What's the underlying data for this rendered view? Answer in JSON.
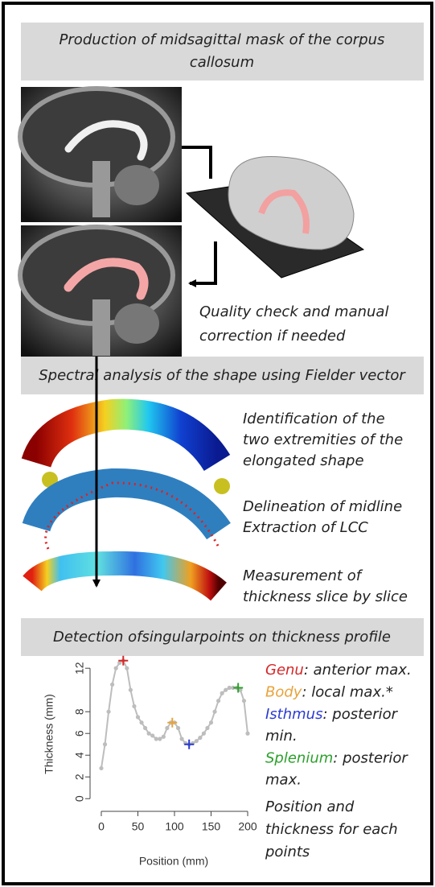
{
  "header1": {
    "lines": [
      "Production of midsagittal mask of the corpus",
      "callosum"
    ]
  },
  "quality_note": {
    "lines": [
      "Quality check and manual",
      "correction if needed"
    ]
  },
  "header2": {
    "lines": [
      "Spectral analysis of the shape using Fielder vector"
    ]
  },
  "steps": [
    {
      "lines": [
        "Identification of the",
        "two extremities of the",
        "elongated shape"
      ]
    },
    {
      "lines": [
        "Delineation of midline",
        "Extraction of LCC"
      ]
    },
    {
      "lines": [
        "Measurement of",
        "thickness slice by slice"
      ]
    }
  ],
  "header3": {
    "lines": [
      "Detection ofsingularpoints on thickness profile"
    ]
  },
  "profile": {
    "type": "line",
    "x_label": "Position (mm)",
    "y_label": "Thickness (mm)",
    "xlim": [
      -8,
      208
    ],
    "ylim": [
      -0.5,
      13.2
    ],
    "xticks": [
      0,
      50,
      100,
      150,
      200
    ],
    "yticks": [
      0,
      2,
      4,
      6,
      8,
      12
    ],
    "color": "#bdbdbd",
    "x": [
      0,
      5,
      10,
      15,
      20,
      25,
      30,
      35,
      40,
      45,
      50,
      55,
      60,
      65,
      70,
      75,
      80,
      85,
      90,
      95,
      100,
      105,
      110,
      115,
      120,
      125,
      130,
      135,
      140,
      145,
      150,
      155,
      160,
      165,
      170,
      175,
      180,
      185,
      190,
      195,
      200
    ],
    "values": [
      2.8,
      5,
      8,
      10.5,
      12,
      12.5,
      12.7,
      12,
      10,
      8.5,
      7.5,
      7,
      6.5,
      6,
      5.8,
      5.5,
      5.5,
      5.7,
      6.5,
      7,
      7,
      6.5,
      5.5,
      5.1,
      5,
      5.1,
      5.3,
      5.6,
      6,
      6.5,
      7,
      8,
      9,
      9.7,
      10,
      10.2,
      10.2,
      10.2,
      10,
      9,
      6
    ],
    "singular_points": [
      {
        "name": "Genu",
        "color": "#d62728",
        "x": 30,
        "y": 12.7,
        "desc_lines": [
          ": anterior max."
        ]
      },
      {
        "name": "Body",
        "color": "#e8a33c",
        "x": 97,
        "y": 7,
        "desc_lines": [
          ": local max.*"
        ]
      },
      {
        "name": "Isthmus",
        "color": "#2b3bd1",
        "x": 120,
        "y": 5,
        "desc_lines": [
          ": posterior",
          "min."
        ]
      },
      {
        "name": "Splenium",
        "color": "#2ca02c",
        "x": 187,
        "y": 10.2,
        "desc_lines": [
          ": posterior",
          "max."
        ]
      }
    ],
    "note_lines": [
      "Position and",
      "thickness for each",
      "points"
    ]
  }
}
